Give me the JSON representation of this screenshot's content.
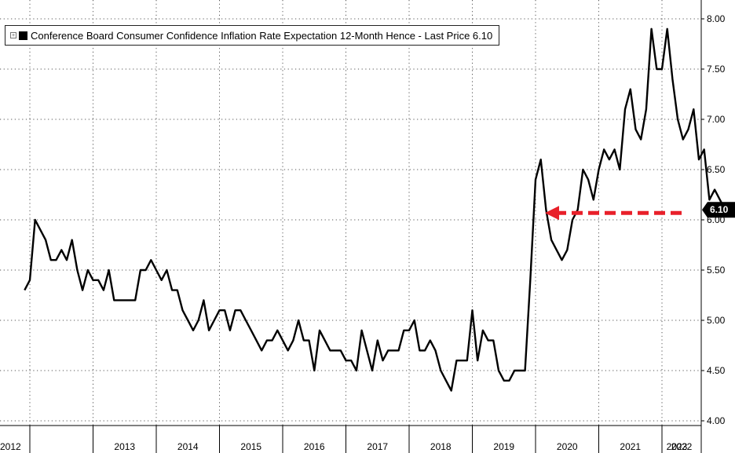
{
  "chart_data": {
    "type": "line",
    "title": "",
    "legend": {
      "label": "Conference Board Consumer Confidence Inflation Rate Expectation 12-Month Hence - Last Price 6.10",
      "position": "top-left",
      "color": "#000000"
    },
    "ylim": [
      4.0,
      8.0
    ],
    "yticks": [
      "4.00",
      "4.50",
      "5.00",
      "5.50",
      "6.00",
      "6.50",
      "7.00",
      "7.50",
      "8.00"
    ],
    "year_labels": [
      "2012",
      "2013",
      "2014",
      "2015",
      "2016",
      "2017",
      "2018",
      "2019",
      "2020",
      "2021",
      "2022",
      "2023"
    ],
    "grid": true,
    "last_value_label": "6.10",
    "arrow_color": "#e8202a",
    "series": [
      {
        "color": "#000000",
        "points": [
          [
            "2011-12",
            5.3
          ],
          [
            "2012-01",
            5.4
          ],
          [
            "2012-02",
            6.0
          ],
          [
            "2012-03",
            5.9
          ],
          [
            "2012-04",
            5.8
          ],
          [
            "2012-05",
            5.6
          ],
          [
            "2012-06",
            5.6
          ],
          [
            "2012-07",
            5.7
          ],
          [
            "2012-08",
            5.6
          ],
          [
            "2012-09",
            5.8
          ],
          [
            "2012-10",
            5.5
          ],
          [
            "2012-11",
            5.3
          ],
          [
            "2012-12",
            5.5
          ],
          [
            "2013-01",
            5.4
          ],
          [
            "2013-02",
            5.4
          ],
          [
            "2013-03",
            5.3
          ],
          [
            "2013-04",
            5.5
          ],
          [
            "2013-05",
            5.2
          ],
          [
            "2013-06",
            5.2
          ],
          [
            "2013-07",
            5.2
          ],
          [
            "2013-08",
            5.2
          ],
          [
            "2013-09",
            5.2
          ],
          [
            "2013-10",
            5.5
          ],
          [
            "2013-11",
            5.5
          ],
          [
            "2013-12",
            5.6
          ],
          [
            "2014-01",
            5.5
          ],
          [
            "2014-02",
            5.4
          ],
          [
            "2014-03",
            5.5
          ],
          [
            "2014-04",
            5.3
          ],
          [
            "2014-05",
            5.3
          ],
          [
            "2014-06",
            5.1
          ],
          [
            "2014-07",
            5.0
          ],
          [
            "2014-08",
            4.9
          ],
          [
            "2014-09",
            5.0
          ],
          [
            "2014-10",
            5.2
          ],
          [
            "2014-11",
            4.9
          ],
          [
            "2014-12",
            5.0
          ],
          [
            "2015-01",
            5.1
          ],
          [
            "2015-02",
            5.1
          ],
          [
            "2015-03",
            4.9
          ],
          [
            "2015-04",
            5.1
          ],
          [
            "2015-05",
            5.1
          ],
          [
            "2015-06",
            5.0
          ],
          [
            "2015-07",
            4.9
          ],
          [
            "2015-08",
            4.8
          ],
          [
            "2015-09",
            4.7
          ],
          [
            "2015-10",
            4.8
          ],
          [
            "2015-11",
            4.8
          ],
          [
            "2015-12",
            4.9
          ],
          [
            "2016-01",
            4.8
          ],
          [
            "2016-02",
            4.7
          ],
          [
            "2016-03",
            4.8
          ],
          [
            "2016-04",
            5.0
          ],
          [
            "2016-05",
            4.8
          ],
          [
            "2016-06",
            4.8
          ],
          [
            "2016-07",
            4.5
          ],
          [
            "2016-08",
            4.9
          ],
          [
            "2016-09",
            4.8
          ],
          [
            "2016-10",
            4.7
          ],
          [
            "2016-11",
            4.7
          ],
          [
            "2016-12",
            4.7
          ],
          [
            "2017-01",
            4.6
          ],
          [
            "2017-02",
            4.6
          ],
          [
            "2017-03",
            4.5
          ],
          [
            "2017-04",
            4.9
          ],
          [
            "2017-05",
            4.7
          ],
          [
            "2017-06",
            4.5
          ],
          [
            "2017-07",
            4.8
          ],
          [
            "2017-08",
            4.6
          ],
          [
            "2017-09",
            4.7
          ],
          [
            "2017-10",
            4.7
          ],
          [
            "2017-11",
            4.7
          ],
          [
            "2017-12",
            4.9
          ],
          [
            "2018-01",
            4.9
          ],
          [
            "2018-02",
            5.0
          ],
          [
            "2018-03",
            4.7
          ],
          [
            "2018-04",
            4.7
          ],
          [
            "2018-05",
            4.8
          ],
          [
            "2018-06",
            4.7
          ],
          [
            "2018-07",
            4.5
          ],
          [
            "2018-08",
            4.4
          ],
          [
            "2018-09",
            4.3
          ],
          [
            "2018-10",
            4.6
          ],
          [
            "2018-11",
            4.6
          ],
          [
            "2018-12",
            4.6
          ],
          [
            "2019-01",
            5.1
          ],
          [
            "2019-02",
            4.6
          ],
          [
            "2019-03",
            4.9
          ],
          [
            "2019-04",
            4.8
          ],
          [
            "2019-05",
            4.8
          ],
          [
            "2019-06",
            4.5
          ],
          [
            "2019-07",
            4.4
          ],
          [
            "2019-08",
            4.4
          ],
          [
            "2019-09",
            4.5
          ],
          [
            "2019-10",
            4.5
          ],
          [
            "2019-11",
            4.5
          ],
          [
            "2019-12",
            5.4
          ],
          [
            "2020-01",
            6.4
          ],
          [
            "2020-02",
            6.6
          ],
          [
            "2020-03",
            6.1
          ],
          [
            "2020-04",
            5.8
          ],
          [
            "2020-05",
            5.7
          ],
          [
            "2020-06",
            5.6
          ],
          [
            "2020-07",
            5.7
          ],
          [
            "2020-08",
            6.0
          ],
          [
            "2020-09",
            6.1
          ],
          [
            "2020-10",
            6.5
          ],
          [
            "2020-11",
            6.4
          ],
          [
            "2020-12",
            6.2
          ],
          [
            "2021-01",
            6.5
          ],
          [
            "2021-02",
            6.7
          ],
          [
            "2021-03",
            6.6
          ],
          [
            "2021-04",
            6.7
          ],
          [
            "2021-05",
            6.5
          ],
          [
            "2021-06",
            7.1
          ],
          [
            "2021-07",
            7.3
          ],
          [
            "2021-08",
            6.9
          ],
          [
            "2021-09",
            6.8
          ],
          [
            "2021-10",
            7.1
          ],
          [
            "2021-11",
            7.9
          ],
          [
            "2021-12",
            7.5
          ],
          [
            "2022-01",
            7.5
          ],
          [
            "2022-02",
            7.9
          ],
          [
            "2022-03",
            7.4
          ],
          [
            "2022-04",
            7.0
          ],
          [
            "2022-05",
            6.8
          ],
          [
            "2022-06",
            6.9
          ],
          [
            "2022-07",
            7.1
          ],
          [
            "2022-08",
            6.6
          ],
          [
            "2022-09",
            6.7
          ],
          [
            "2022-10",
            6.2
          ],
          [
            "2022-11",
            6.3
          ],
          [
            "2022-12",
            6.2
          ],
          [
            "2023-01",
            6.1
          ]
        ]
      }
    ]
  }
}
